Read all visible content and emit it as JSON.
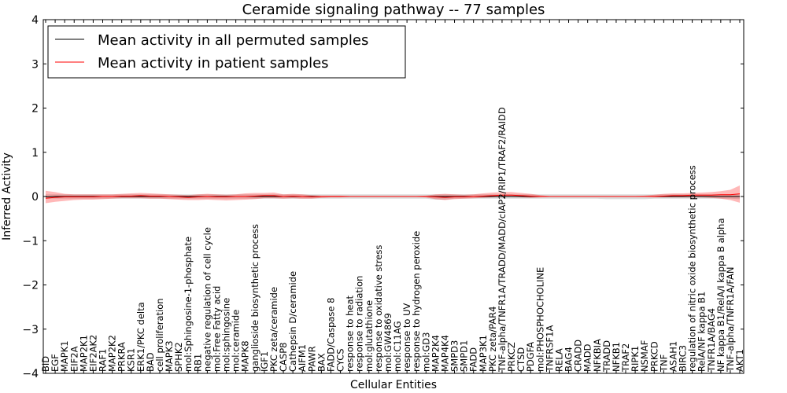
{
  "chart_data": {
    "type": "line",
    "title": "Ceramide signaling pathway -- 77 samples",
    "xlabel": "Cellular Entities",
    "ylabel": "Inferred Activity",
    "ylim": [
      -4,
      4
    ],
    "yticks": [
      -4,
      -3,
      -2,
      -1,
      0,
      1,
      2,
      3,
      4
    ],
    "ytick_labels": [
      "−4",
      "−3",
      "−2",
      "−1",
      "0",
      "1",
      "2",
      "3",
      "4"
    ],
    "legend": {
      "placement": "top-left",
      "entries": [
        {
          "label": "Mean activity in all permuted samples",
          "color": "#000000"
        },
        {
          "label": "Mean activity in patient samples",
          "color": "#ff0000"
        }
      ]
    },
    "categories": [
      "BID",
      "EGF",
      "MAPK1",
      "EIF2A",
      "MAP2K1",
      "EIF2AK2",
      "RAF1",
      "MAP2K2",
      "PRKRA",
      "KSR1",
      "ERK1/PKC delta",
      "BAD",
      "cell proliferation",
      "MAPK3",
      "SPHK2",
      "mol:Sphingosine-1-phosphate",
      "RB1",
      "negative regulation of cell cycle",
      "mol:Free Fatty acid",
      "mol:sphingosine",
      "mol:ceramide",
      "MAPK8",
      "ganglioside biosynthetic process",
      "IGF1",
      "PKC zeta/ceramide",
      "CASP8",
      "Cathepsin D/ceramide",
      "AIFM1",
      "PAWR",
      "BAX",
      "FADD/Caspase 8",
      "CYCS",
      "response to heat",
      "response to radiation",
      "mol:glutathione",
      "response to oxidative stress",
      "mol:GW4869",
      "mol:C11AG",
      "response to UV",
      "response to hydrogen peroxide",
      "mol:GD3",
      "MAP2K4",
      "MAP4K4",
      "SMPD3",
      "SMPD1",
      "FADD",
      "MAP3K1",
      "PKC zeta/PAR4",
      "TNF-alpha/TNFR1A/TRADD/MADD/cIAP2/RIP1/TRAF2/RAIDD",
      "PRKCZ",
      "CTSD",
      "PDGFA",
      "mol:PHOSPHOCHOLINE",
      "TNFRSF1A",
      "RELA",
      "BAG4",
      "CRADD",
      "MADD",
      "NFKBIA",
      "TRADD",
      "NFKB1",
      "TRAF2",
      "RIPK1",
      "NSMAF",
      "PRKCD",
      "TNF",
      "ASAH1",
      "BIRC3",
      "regulation of nitric oxide biosynthetic process",
      "RelA/NF kappa B1",
      "TNFR1A/BAG4",
      "NF kappa B1/RelA/I kappa B alpha",
      "TNF-alpha/TNFR1A/FAN",
      "AKT1"
    ],
    "series": [
      {
        "name": "Mean activity in all permuted samples",
        "color": "#000000",
        "values": [
          -0.01,
          0,
          0,
          0,
          0,
          0,
          0,
          0,
          0,
          0,
          0,
          0,
          0,
          0,
          0,
          0,
          0,
          0,
          0,
          0,
          0,
          0,
          0,
          0,
          0,
          0,
          0,
          0,
          0,
          0,
          0,
          0,
          0,
          0,
          0,
          0,
          0,
          0,
          0,
          0,
          0,
          0,
          0,
          0,
          0,
          0,
          0,
          0,
          0,
          0,
          0,
          0,
          0,
          0,
          0,
          0,
          0,
          0,
          0,
          0,
          0,
          0,
          0,
          0,
          0,
          0,
          0,
          0,
          0,
          0,
          0,
          0,
          0,
          0
        ],
        "lower": [
          -0.05,
          -0.05,
          -0.05,
          -0.05,
          -0.05,
          -0.05,
          -0.05,
          -0.05,
          -0.05,
          -0.05,
          -0.05,
          -0.05,
          -0.05,
          -0.05,
          -0.05,
          -0.05,
          -0.05,
          -0.05,
          -0.05,
          -0.05,
          -0.05,
          -0.05,
          -0.05,
          -0.05,
          -0.05,
          -0.05,
          -0.05,
          -0.05,
          -0.05,
          -0.05,
          -0.05,
          -0.05,
          -0.05,
          -0.05,
          -0.05,
          -0.05,
          -0.05,
          -0.05,
          -0.05,
          -0.05,
          -0.05,
          -0.07,
          -0.07,
          -0.05,
          -0.05,
          -0.05,
          -0.05,
          -0.05,
          -0.05,
          -0.05,
          -0.05,
          -0.05,
          -0.05,
          -0.05,
          -0.05,
          -0.05,
          -0.05,
          -0.05,
          -0.05,
          -0.06,
          -0.06,
          -0.06,
          -0.06,
          -0.06,
          -0.05,
          -0.05,
          -0.05,
          -0.05,
          -0.05,
          -0.05,
          -0.05,
          -0.05,
          -0.05,
          -0.06
        ],
        "upper": [
          0.05,
          0.05,
          0.05,
          0.05,
          0.05,
          0.05,
          0.05,
          0.05,
          0.05,
          0.05,
          0.05,
          0.05,
          0.05,
          0.05,
          0.05,
          0.05,
          0.05,
          0.05,
          0.05,
          0.05,
          0.05,
          0.05,
          0.05,
          0.05,
          0.05,
          0.05,
          0.05,
          0.05,
          0.05,
          0.05,
          0.05,
          0.05,
          0.05,
          0.05,
          0.05,
          0.05,
          0.05,
          0.05,
          0.05,
          0.05,
          0.05,
          0.05,
          0.05,
          0.05,
          0.05,
          0.05,
          0.05,
          0.05,
          0.05,
          0.05,
          0.05,
          0.05,
          0.05,
          0.05,
          0.05,
          0.05,
          0.05,
          0.05,
          0.05,
          0.05,
          0.05,
          0.05,
          0.05,
          0.05,
          0.05,
          0.05,
          0.05,
          0.05,
          0.05,
          0.05,
          0.05,
          0.05,
          0.05,
          0.06
        ]
      },
      {
        "name": "Mean activity in patient samples",
        "color": "#ff0000",
        "values": [
          -0.04,
          -0.02,
          -0.01,
          -0.01,
          -0.01,
          -0.01,
          0,
          0,
          0.01,
          0.01,
          0.02,
          0.01,
          0.01,
          0,
          -0.01,
          -0.02,
          -0.01,
          0,
          -0.01,
          -0.01,
          0,
          0,
          0.01,
          0.02,
          0.02,
          0,
          0.01,
          0,
          -0.01,
          0,
          0,
          0,
          0,
          0,
          0,
          0,
          0,
          0,
          0,
          0,
          0,
          -0.01,
          -0.02,
          -0.01,
          -0.01,
          0,
          0.01,
          0.02,
          0.03,
          0.03,
          0.02,
          0.01,
          0,
          0,
          0,
          0,
          0,
          0,
          0,
          0,
          0,
          0,
          0,
          0,
          0,
          0.01,
          0.02,
          0.02,
          0.03,
          0.03,
          0.03,
          0.04,
          0.04,
          0.06
        ],
        "lower": [
          -0.15,
          -0.12,
          -0.1,
          -0.08,
          -0.07,
          -0.07,
          -0.06,
          -0.05,
          -0.04,
          -0.04,
          -0.04,
          -0.05,
          -0.05,
          -0.06,
          -0.07,
          -0.08,
          -0.08,
          -0.07,
          -0.08,
          -0.09,
          -0.08,
          -0.07,
          -0.06,
          -0.04,
          -0.04,
          -0.05,
          -0.04,
          -0.05,
          -0.05,
          -0.03,
          -0.02,
          -0.02,
          -0.01,
          -0.01,
          -0.01,
          -0.01,
          -0.01,
          -0.01,
          -0.01,
          -0.01,
          -0.02,
          -0.06,
          -0.08,
          -0.06,
          -0.05,
          -0.04,
          -0.03,
          -0.02,
          -0.01,
          -0.01,
          -0.02,
          -0.03,
          -0.02,
          -0.01,
          -0.01,
          -0.01,
          -0.01,
          -0.01,
          -0.01,
          -0.01,
          -0.01,
          -0.01,
          -0.01,
          -0.01,
          -0.02,
          -0.02,
          -0.02,
          -0.02,
          -0.02,
          -0.02,
          -0.03,
          -0.05,
          -0.08,
          -0.14
        ],
        "upper": [
          0.13,
          0.1,
          0.06,
          0.05,
          0.05,
          0.05,
          0.05,
          0.05,
          0.06,
          0.07,
          0.08,
          0.07,
          0.06,
          0.05,
          0.04,
          0.03,
          0.05,
          0.06,
          0.05,
          0.04,
          0.05,
          0.07,
          0.08,
          0.08,
          0.09,
          0.05,
          0.06,
          0.05,
          0.03,
          0.02,
          0.02,
          0.02,
          0.01,
          0.01,
          0.01,
          0.01,
          0.01,
          0.01,
          0.01,
          0.01,
          0.02,
          0.05,
          0.06,
          0.05,
          0.04,
          0.05,
          0.07,
          0.09,
          0.1,
          0.1,
          0.08,
          0.06,
          0.03,
          0.01,
          0.01,
          0.01,
          0.01,
          0.01,
          0.01,
          0.01,
          0.01,
          0.01,
          0.01,
          0.02,
          0.04,
          0.06,
          0.07,
          0.07,
          0.08,
          0.09,
          0.1,
          0.12,
          0.15,
          0.25
        ]
      }
    ]
  }
}
